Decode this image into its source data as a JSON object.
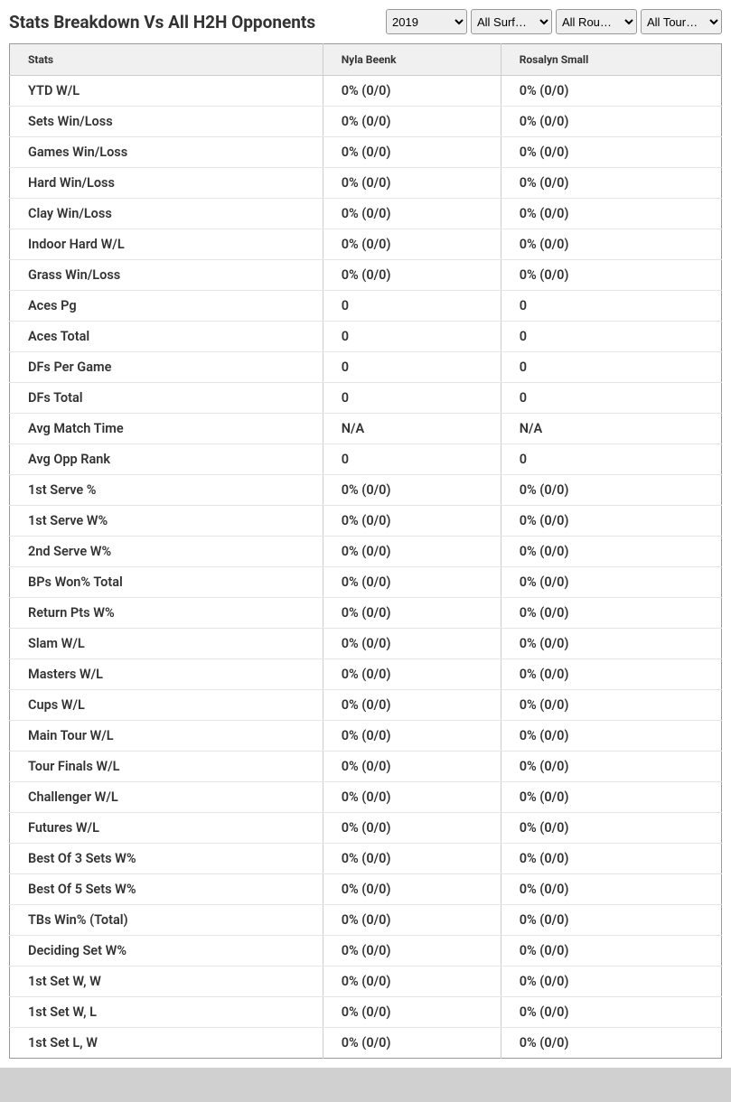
{
  "header": {
    "title": "Stats Breakdown Vs All H2H Opponents"
  },
  "filters": {
    "year": "2019",
    "surface": "All Surf…",
    "round": "All Rou…",
    "tournament": "All Tour…"
  },
  "table": {
    "columns": [
      "Stats",
      "Nyla Beenk",
      "Rosalyn Small"
    ],
    "rows": [
      [
        "YTD W/L",
        "0% (0/0)",
        "0% (0/0)"
      ],
      [
        "Sets Win/Loss",
        "0% (0/0)",
        "0% (0/0)"
      ],
      [
        "Games Win/Loss",
        "0% (0/0)",
        "0% (0/0)"
      ],
      [
        "Hard Win/Loss",
        "0% (0/0)",
        "0% (0/0)"
      ],
      [
        "Clay Win/Loss",
        "0% (0/0)",
        "0% (0/0)"
      ],
      [
        "Indoor Hard W/L",
        "0% (0/0)",
        "0% (0/0)"
      ],
      [
        "Grass Win/Loss",
        "0% (0/0)",
        "0% (0/0)"
      ],
      [
        "Aces Pg",
        "0",
        "0"
      ],
      [
        "Aces Total",
        "0",
        "0"
      ],
      [
        "DFs Per Game",
        "0",
        "0"
      ],
      [
        "DFs Total",
        "0",
        "0"
      ],
      [
        "Avg Match Time",
        "N/A",
        "N/A"
      ],
      [
        "Avg Opp Rank",
        "0",
        "0"
      ],
      [
        "1st Serve %",
        "0% (0/0)",
        "0% (0/0)"
      ],
      [
        "1st Serve W%",
        "0% (0/0)",
        "0% (0/0)"
      ],
      [
        "2nd Serve W%",
        "0% (0/0)",
        "0% (0/0)"
      ],
      [
        "BPs Won% Total",
        "0% (0/0)",
        "0% (0/0)"
      ],
      [
        "Return Pts W%",
        "0% (0/0)",
        "0% (0/0)"
      ],
      [
        "Slam W/L",
        "0% (0/0)",
        "0% (0/0)"
      ],
      [
        "Masters W/L",
        "0% (0/0)",
        "0% (0/0)"
      ],
      [
        "Cups W/L",
        "0% (0/0)",
        "0% (0/0)"
      ],
      [
        "Main Tour W/L",
        "0% (0/0)",
        "0% (0/0)"
      ],
      [
        "Tour Finals W/L",
        "0% (0/0)",
        "0% (0/0)"
      ],
      [
        "Challenger W/L",
        "0% (0/0)",
        "0% (0/0)"
      ],
      [
        "Futures W/L",
        "0% (0/0)",
        "0% (0/0)"
      ],
      [
        "Best Of 3 Sets W%",
        "0% (0/0)",
        "0% (0/0)"
      ],
      [
        "Best Of 5 Sets W%",
        "0% (0/0)",
        "0% (0/0)"
      ],
      [
        "TBs Win% (Total)",
        "0% (0/0)",
        "0% (0/0)"
      ],
      [
        "Deciding Set W%",
        "0% (0/0)",
        "0% (0/0)"
      ],
      [
        "1st Set W, W",
        "0% (0/0)",
        "0% (0/0)"
      ],
      [
        "1st Set W, L",
        "0% (0/0)",
        "0% (0/0)"
      ],
      [
        "1st Set L, W",
        "0% (0/0)",
        "0% (0/0)"
      ]
    ]
  },
  "styling": {
    "background_color": "#d0d0d0",
    "container_bg": "#ffffff",
    "header_bg": "#f0f0f0",
    "border_color": "#999",
    "row_border_color": "#e5e5e5",
    "text_color": "#333",
    "title_fontsize": 19,
    "header_fontsize": 12,
    "cell_fontsize": 14.5
  }
}
